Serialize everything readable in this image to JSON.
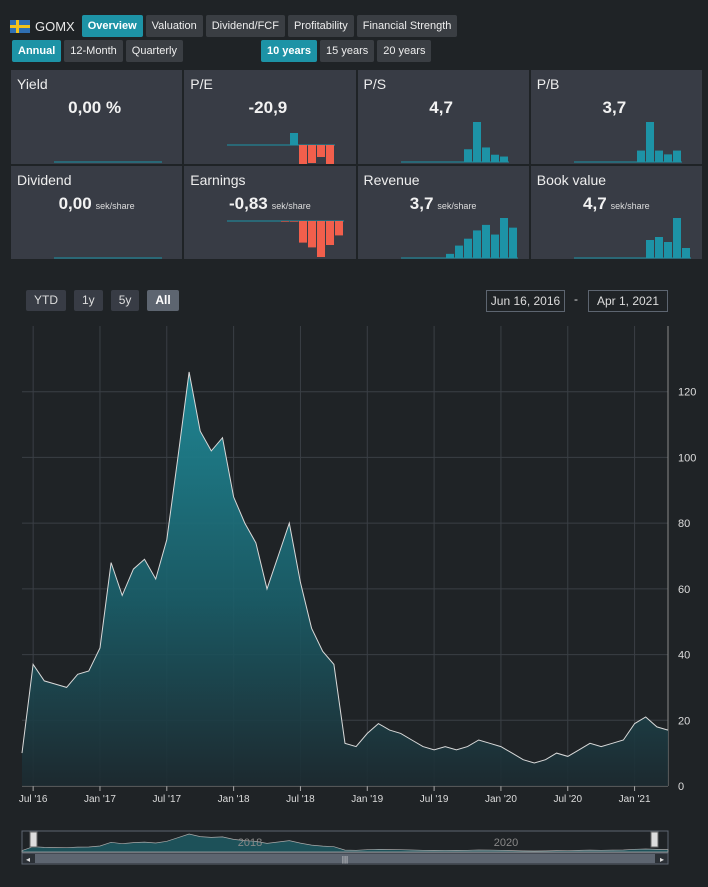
{
  "header": {
    "ticker": "GOMX",
    "tabs": [
      "Overview",
      "Valuation",
      "Dividend/FCF",
      "Profitability",
      "Financial Strength"
    ],
    "active_tab": "Overview",
    "period_tabs": [
      "Annual",
      "12-Month",
      "Quarterly"
    ],
    "active_period": "Annual",
    "year_tabs": [
      "10 years",
      "15 years",
      "20 years"
    ],
    "active_years": "10 years"
  },
  "cards": [
    {
      "id": "yield",
      "title": "Yield",
      "value": "0,00 %",
      "unit": "",
      "bars": [
        0,
        0,
        0,
        0,
        0,
        0,
        0,
        0,
        0,
        0,
        0,
        0
      ],
      "color": "#1d93a6"
    },
    {
      "id": "pe",
      "title": "P/E",
      "value": "-20,9",
      "unit": "",
      "bars": [
        0,
        0,
        0,
        0,
        0,
        0,
        0,
        1,
        0,
        0,
        0,
        0
      ],
      "neg": [
        0,
        0,
        0,
        0,
        0,
        0,
        0,
        0,
        3,
        1.5,
        1,
        2
      ],
      "color": "#1d93a6"
    },
    {
      "id": "ps",
      "title": "P/S",
      "value": "4,7",
      "unit": "",
      "bars": [
        0,
        0,
        0,
        0,
        0,
        0,
        0,
        7,
        22,
        8,
        4,
        3
      ],
      "color": "#1d93a6"
    },
    {
      "id": "pb",
      "title": "P/B",
      "value": "3,7",
      "unit": "",
      "bars": [
        0,
        0,
        0,
        0,
        0,
        0,
        0,
        6,
        21,
        6,
        4,
        6
      ],
      "color": "#1d93a6"
    },
    {
      "id": "dividend",
      "title": "Dividend",
      "value": "0,00",
      "unit": "sek/share",
      "bars": [
        0,
        0,
        0,
        0,
        0,
        0,
        0,
        0,
        0,
        0,
        0,
        0
      ],
      "color": "#1d93a6"
    },
    {
      "id": "earnings",
      "title": "Earnings",
      "value": "-0,83",
      "unit": "sek/share",
      "bars": [
        0,
        0,
        0,
        0,
        0,
        0,
        0,
        0,
        0,
        0,
        0,
        0
      ],
      "neg": [
        0,
        0,
        0,
        0,
        0,
        0,
        0.5,
        0.5,
        18,
        22,
        30,
        20,
        12
      ],
      "color": "#1d93a6"
    },
    {
      "id": "revenue",
      "title": "Revenue",
      "value": "3,7",
      "unit": "sek/share",
      "bars": [
        0,
        0,
        0,
        0,
        0,
        3,
        9,
        14,
        20,
        24,
        17,
        29,
        22
      ],
      "color": "#1d93a6"
    },
    {
      "id": "bookvalue",
      "title": "Book value",
      "value": "4,7",
      "unit": "sek/share",
      "bars": [
        0,
        0,
        0,
        0,
        0,
        0,
        0,
        0,
        18,
        21,
        16,
        40,
        10
      ],
      "color": "#1d93a6"
    }
  ],
  "range": {
    "buttons": [
      "YTD",
      "1y",
      "5y",
      "All"
    ],
    "active": "All",
    "from": "Jun 16, 2016",
    "separator": "-",
    "to": "Apr 1, 2021"
  },
  "chart_data": {
    "type": "area",
    "xlabels": [
      "Jul '16",
      "Jan '17",
      "Jul '17",
      "Jan '18",
      "Jul '18",
      "Jan '19",
      "Jul '19",
      "Jan '20",
      "Jul '20",
      "Jan '21"
    ],
    "ylabels": [
      "0",
      "20",
      "40",
      "60",
      "80",
      "100",
      "120"
    ],
    "ylim": [
      0,
      140
    ],
    "x": [
      "2016-06",
      "2016-07",
      "2016-08",
      "2016-09",
      "2016-10",
      "2016-11",
      "2016-12",
      "2017-01",
      "2017-02",
      "2017-03",
      "2017-04",
      "2017-05",
      "2017-06",
      "2017-07",
      "2017-08",
      "2017-09",
      "2017-10",
      "2017-11",
      "2017-12",
      "2018-01",
      "2018-02",
      "2018-03",
      "2018-04",
      "2018-05",
      "2018-06",
      "2018-07",
      "2018-08",
      "2018-09",
      "2018-10",
      "2018-11",
      "2018-12",
      "2019-01",
      "2019-02",
      "2019-03",
      "2019-04",
      "2019-05",
      "2019-06",
      "2019-07",
      "2019-08",
      "2019-09",
      "2019-10",
      "2019-11",
      "2019-12",
      "2020-01",
      "2020-02",
      "2020-03",
      "2020-04",
      "2020-05",
      "2020-06",
      "2020-07",
      "2020-08",
      "2020-09",
      "2020-10",
      "2020-11",
      "2020-12",
      "2021-01",
      "2021-02",
      "2021-03",
      "2021-04"
    ],
    "values": [
      10,
      37,
      32,
      31,
      30,
      34,
      35,
      42,
      68,
      58,
      66,
      69,
      63,
      75,
      100,
      126,
      108,
      102,
      106,
      88,
      80,
      74,
      60,
      70,
      80,
      62,
      48,
      41,
      37,
      13,
      12,
      16,
      19,
      17,
      16,
      14,
      12,
      11,
      12,
      11,
      12,
      14,
      13,
      12,
      10,
      8,
      7,
      8,
      10,
      9,
      11,
      13,
      12,
      13,
      14,
      19,
      21,
      18,
      17
    ],
    "navigator_labels": [
      "2018",
      "2020"
    ]
  }
}
